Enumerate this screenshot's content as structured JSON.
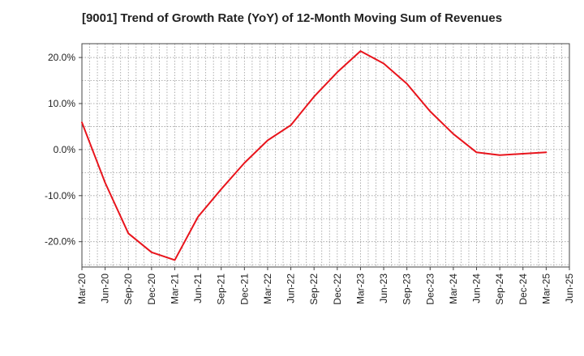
{
  "chart_data": {
    "type": "line",
    "title": "[9001]  Trend of Growth Rate (YoY) of 12-Month Moving Sum of Revenues",
    "xlabel": "",
    "ylabel": "",
    "x": [
      "Mar-20",
      "Jun-20",
      "Sep-20",
      "Dec-20",
      "Mar-21",
      "Jun-21",
      "Sep-21",
      "Dec-21",
      "Mar-22",
      "Jun-22",
      "Sep-22",
      "Dec-22",
      "Mar-23",
      "Jun-23",
      "Sep-23",
      "Dec-23",
      "Mar-24",
      "Jun-24",
      "Sep-24",
      "Dec-24",
      "Mar-25"
    ],
    "x_ticks": [
      "Mar-20",
      "Jun-20",
      "Sep-20",
      "Dec-20",
      "Mar-21",
      "Jun-21",
      "Sep-21",
      "Dec-21",
      "Mar-22",
      "Jun-22",
      "Sep-22",
      "Dec-22",
      "Mar-23",
      "Jun-23",
      "Sep-23",
      "Dec-23",
      "Mar-24",
      "Jun-24",
      "Sep-24",
      "Dec-24",
      "Mar-25",
      "Jun-25"
    ],
    "series": [
      {
        "values": [
          5.9,
          -7.2,
          -18.2,
          -22.3,
          -24.0,
          -14.6,
          -8.6,
          -2.9,
          2.0,
          5.3,
          11.5,
          16.8,
          21.4,
          18.7,
          14.3,
          8.3,
          3.4,
          -0.6,
          -1.2,
          -0.9,
          -0.6
        ],
        "color": "#e8141c"
      }
    ],
    "ylim": [
      -25.5,
      23.0
    ],
    "y_ticks": [
      20,
      10,
      0,
      -10,
      -20
    ],
    "y_tick_labels": [
      "20.0%",
      "10.0%",
      "0.0%",
      "-10.0%",
      "-20.0%"
    ],
    "grid": true,
    "legend": "none"
  }
}
